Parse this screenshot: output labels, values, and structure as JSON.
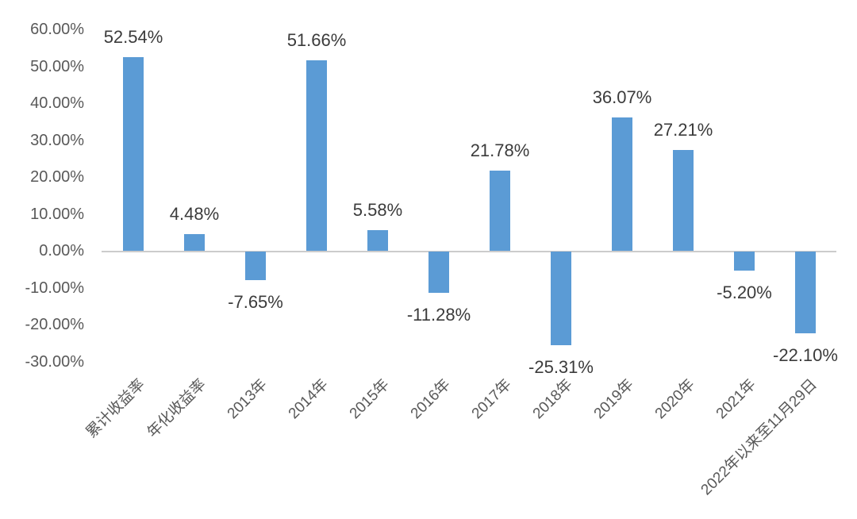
{
  "chart_data": {
    "type": "bar",
    "title": "",
    "xlabel": "",
    "ylabel": "",
    "grid": false,
    "legend": false,
    "categories": [
      "累计收益率",
      "年化收益率",
      "2013年",
      "2014年",
      "2015年",
      "2016年",
      "2017年",
      "2018年",
      "2019年",
      "2020年",
      "2021年",
      "2022年以来至11月29日"
    ],
    "values": [
      52.54,
      4.48,
      -7.65,
      51.66,
      5.58,
      -11.28,
      21.78,
      -25.31,
      36.07,
      27.21,
      -5.2,
      -22.1
    ],
    "value_labels": [
      "52.54%",
      "4.48%",
      "-7.65%",
      "51.66%",
      "5.58%",
      "-11.28%",
      "21.78%",
      "-25.31%",
      "36.07%",
      "27.21%",
      "-5.20%",
      "-22.10%"
    ],
    "y_axis": {
      "tick_labels": [
        "60.00%",
        "50.00%",
        "40.00%",
        "30.00%",
        "20.00%",
        "10.00%",
        "0.00%",
        "-10.00%",
        "-20.00%",
        "-30.00%"
      ],
      "tick_values": [
        60,
        50,
        40,
        30,
        20,
        10,
        0,
        -10,
        -20,
        -30
      ],
      "min": -30,
      "max": 60,
      "step": 10
    },
    "colors": {
      "bar": "#5B9BD5",
      "axis_line": "#cccccc",
      "tick_text": "#595959",
      "category_text": "#595959",
      "data_label_text": "#3b3b3b",
      "background": "#ffffff"
    }
  }
}
